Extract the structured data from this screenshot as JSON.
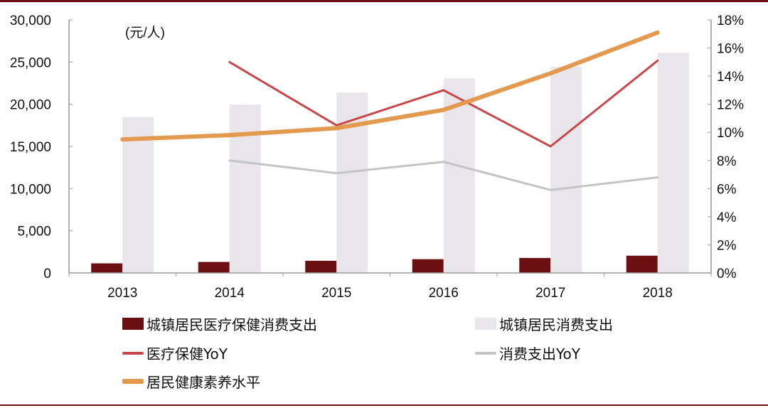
{
  "chart_data": {
    "type": "bar",
    "unit_label": "(元/人)",
    "categories": [
      "2013",
      "2014",
      "2015",
      "2016",
      "2017",
      "2018"
    ],
    "left_axis": {
      "ylim": [
        0,
        30000
      ],
      "ticks": [
        "0",
        "5,000",
        "10,000",
        "15,000",
        "20,000",
        "25,000",
        "30,000"
      ],
      "tick_values": [
        0,
        5000,
        10000,
        15000,
        20000,
        25000,
        30000
      ]
    },
    "right_axis": {
      "ylim": [
        0,
        18
      ],
      "ticks": [
        "0%",
        "2%",
        "4%",
        "6%",
        "8%",
        "10%",
        "12%",
        "14%",
        "16%",
        "18%"
      ],
      "tick_values": [
        0,
        2,
        4,
        6,
        8,
        10,
        12,
        14,
        16,
        18
      ]
    },
    "series": [
      {
        "name": "城镇居民医疗保健消费支出",
        "type": "bar",
        "axis": "left",
        "color": "#6b0f12",
        "values": [
          1136,
          1306,
          1443,
          1631,
          1777,
          2046
        ]
      },
      {
        "name": "城镇居民消费支出",
        "type": "bar",
        "axis": "left",
        "color": "#e8e6ea",
        "values": [
          18488,
          19968,
          21392,
          23079,
          24445,
          26112
        ]
      },
      {
        "name": "医疗保健YoY",
        "type": "line",
        "axis": "right",
        "color": "#c8474a",
        "values": [
          null,
          15.0,
          10.5,
          13.0,
          9.0,
          15.1
        ]
      },
      {
        "name": "消费支出YoY",
        "type": "line",
        "axis": "right",
        "color": "#c4c4c6",
        "values": [
          null,
          8.0,
          7.1,
          7.9,
          5.9,
          6.8
        ]
      },
      {
        "name": "居民健康素养水平",
        "type": "line",
        "axis": "right",
        "color": "#e39a4e",
        "values": [
          9.5,
          9.8,
          10.3,
          11.6,
          14.2,
          17.1
        ]
      }
    ],
    "legend_position": "bottom",
    "grid": false
  }
}
